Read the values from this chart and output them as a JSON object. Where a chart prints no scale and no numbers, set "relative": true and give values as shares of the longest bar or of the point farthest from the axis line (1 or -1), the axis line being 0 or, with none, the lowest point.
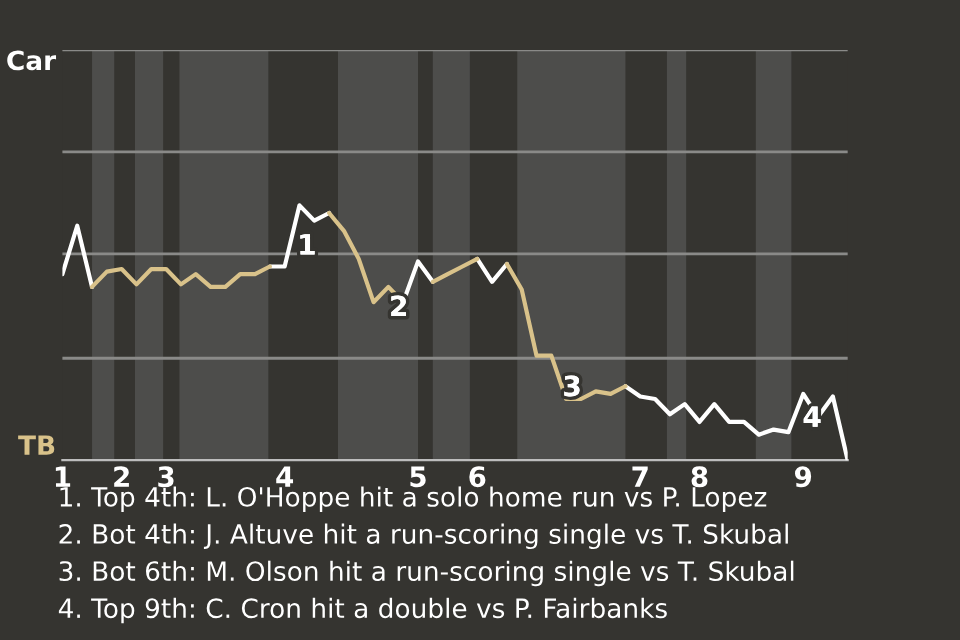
{
  "chart_data": {
    "type": "line",
    "relative": true,
    "categories": [
      "1",
      null,
      null,
      null,
      "2",
      null,
      null,
      "3",
      null,
      null,
      null,
      null,
      null,
      null,
      null,
      "4",
      null,
      null,
      null,
      null,
      null,
      null,
      null,
      null,
      "5",
      null,
      null,
      null,
      "6",
      null,
      null,
      null,
      null,
      null,
      null,
      null,
      null,
      null,
      null,
      "7",
      null,
      null,
      null,
      "8",
      null,
      null,
      null,
      null,
      null,
      null,
      "9",
      null,
      null,
      null
    ],
    "series": [
      {
        "color": "#ffffff",
        "values": [
          0.73,
          0.92,
          0.68,
          null,
          null,
          null,
          null,
          null,
          null,
          null,
          null,
          null,
          null,
          null,
          0.76,
          0.76,
          1,
          0.94,
          0.97,
          null,
          null,
          null,
          null,
          0.62,
          0.78,
          0.7,
          null,
          null,
          0.79,
          0.7,
          0.77,
          null,
          null,
          null,
          null,
          null,
          null,
          null,
          0.29,
          0.25,
          0.24,
          0.18,
          0.22,
          0.15,
          0.22,
          0.15,
          0.15,
          0.1,
          0.12,
          0.11,
          0.26,
          0.17,
          0.25,
          0
        ]
      },
      {
        "color": "#d9c28a",
        "values": [
          null,
          null,
          0.68,
          0.74,
          0.75,
          0.69,
          0.75,
          0.75,
          0.69,
          0.73,
          0.68,
          0.68,
          0.73,
          0.73,
          0.76,
          null,
          null,
          null,
          0.97,
          0.9,
          0.79,
          0.62,
          0.68,
          0.62,
          null,
          0.7,
          0.73,
          0.76,
          0.79,
          null,
          0.77,
          0.67,
          0.41,
          0.41,
          0.24,
          0.24,
          0.27,
          0.26,
          0.29,
          null,
          null,
          null,
          null,
          null,
          null,
          null,
          null,
          null,
          null,
          null,
          null,
          null,
          null,
          null
        ]
      }
    ],
    "marker": "none",
    "line_style": "solid",
    "legend": false,
    "ref_lines": [
      {
        "axis": "y",
        "value": 0.4,
        "color": "#8a8a88"
      },
      {
        "axis": "y",
        "value": 0.81,
        "color": "#8a8a88"
      },
      {
        "axis": "y",
        "value": 1.21,
        "color": "#8a8a88"
      },
      {
        "axis": "y",
        "value": 1.61,
        "color": "#8a8a88"
      }
    ],
    "annotations": [
      "Car",
      "TB",
      "1",
      "2",
      "3",
      "4",
      "1. Top 4th: L. O'Hoppe hit a solo home run vs P. Lopez",
      "2. Bot 4th: J. Altuve hit a run-scoring single vs T. Skubal",
      "3. Bot 6th: M. Olson hit a run-scoring single vs T. Skubal",
      "4. Top 9th: C. Cron hit a double vs P. Fairbanks"
    ]
  }
}
